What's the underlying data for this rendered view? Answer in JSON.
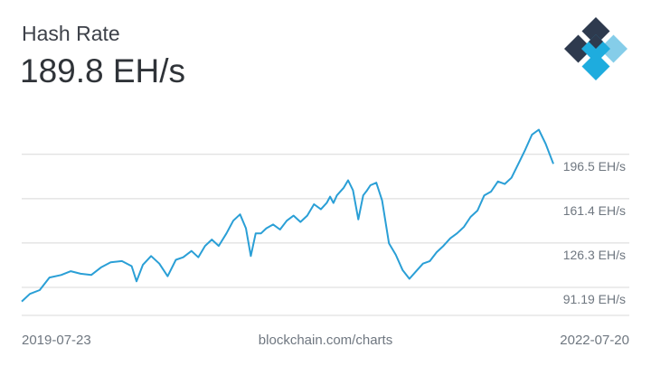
{
  "header": {
    "title": "Hash Rate",
    "value": "189.8 EH/s",
    "logo_icon": "blockchain-logo-icon"
  },
  "footer": {
    "start_date": "2019-07-23",
    "source": "blockchain.com/charts",
    "end_date": "2022-07-20"
  },
  "colors": {
    "line": "#2a9fd6",
    "grid": "#d8d8d8",
    "text": "#6f7780",
    "logo_dark": "#2e3a4e",
    "logo_blue": "#1eacde",
    "logo_light": "#85cde9"
  },
  "chart_data": {
    "type": "line",
    "title": "Hash Rate",
    "y_unit": "EH/s",
    "x_range": [
      "2019-07-23",
      "2022-07-20"
    ],
    "ylim": [
      69,
      240
    ],
    "y_ticks": [
      {
        "value": 91.19,
        "label": "91.19 EH/s"
      },
      {
        "value": 126.3,
        "label": "126.3 EH/s"
      },
      {
        "value": 161.4,
        "label": "161.4 EH/s"
      },
      {
        "value": 196.5,
        "label": "196.5 EH/s"
      }
    ],
    "grid": true,
    "series": [
      {
        "x": [
          "2019-07-23",
          "2019-08-09",
          "2019-08-29",
          "2019-09-18",
          "2019-10-12",
          "2019-11-01",
          "2019-11-21",
          "2019-12-13",
          "2020-01-02",
          "2020-01-22",
          "2020-02-14",
          "2020-03-05",
          "2020-03-15",
          "2020-03-28",
          "2020-04-14",
          "2020-05-01",
          "2020-05-18",
          "2020-06-04",
          "2020-06-19",
          "2020-07-06",
          "2020-07-20",
          "2020-08-03",
          "2020-08-17",
          "2020-08-31",
          "2020-09-16",
          "2020-09-30",
          "2020-10-14",
          "2020-10-26",
          "2020-11-05",
          "2020-11-15",
          "2020-11-26",
          "2020-12-07",
          "2020-12-21",
          "2021-01-04",
          "2021-01-18",
          "2021-02-01",
          "2021-02-15",
          "2021-03-01",
          "2021-03-15",
          "2021-03-29",
          "2021-04-10",
          "2021-04-17",
          "2021-04-24",
          "2021-05-01",
          "2021-05-15",
          "2021-05-24",
          "2021-06-03",
          "2021-06-14",
          "2021-06-24",
          "2021-07-02",
          "2021-07-09",
          "2021-07-21",
          "2021-08-02",
          "2021-08-16",
          "2021-08-30",
          "2021-09-13",
          "2021-09-27",
          "2021-10-11",
          "2021-10-25",
          "2021-11-08",
          "2021-11-22",
          "2021-12-06",
          "2021-12-20",
          "2022-01-03",
          "2022-01-17",
          "2022-01-31",
          "2022-02-14",
          "2022-02-28",
          "2022-03-14",
          "2022-03-28",
          "2022-04-11",
          "2022-04-25",
          "2022-05-09",
          "2022-05-23",
          "2022-06-06",
          "2022-06-20",
          "2022-07-04",
          "2022-07-20"
        ],
        "y": [
          80,
          86,
          89,
          99,
          101,
          104,
          102,
          101,
          107,
          111,
          112,
          108,
          96,
          109,
          116,
          110,
          100,
          113,
          115,
          120,
          115,
          124,
          129,
          124,
          134,
          144,
          149,
          138,
          116,
          134,
          134,
          138,
          141,
          137,
          144,
          148,
          143,
          148,
          157,
          153,
          158,
          163,
          158,
          164,
          170,
          176,
          168,
          145,
          164,
          168,
          172,
          174,
          160,
          126,
          117,
          105,
          98,
          104,
          110,
          112,
          119,
          124,
          130,
          134,
          139,
          147,
          152,
          164,
          167,
          175,
          173,
          178,
          189,
          200,
          212,
          216,
          205,
          189
        ]
      }
    ]
  }
}
